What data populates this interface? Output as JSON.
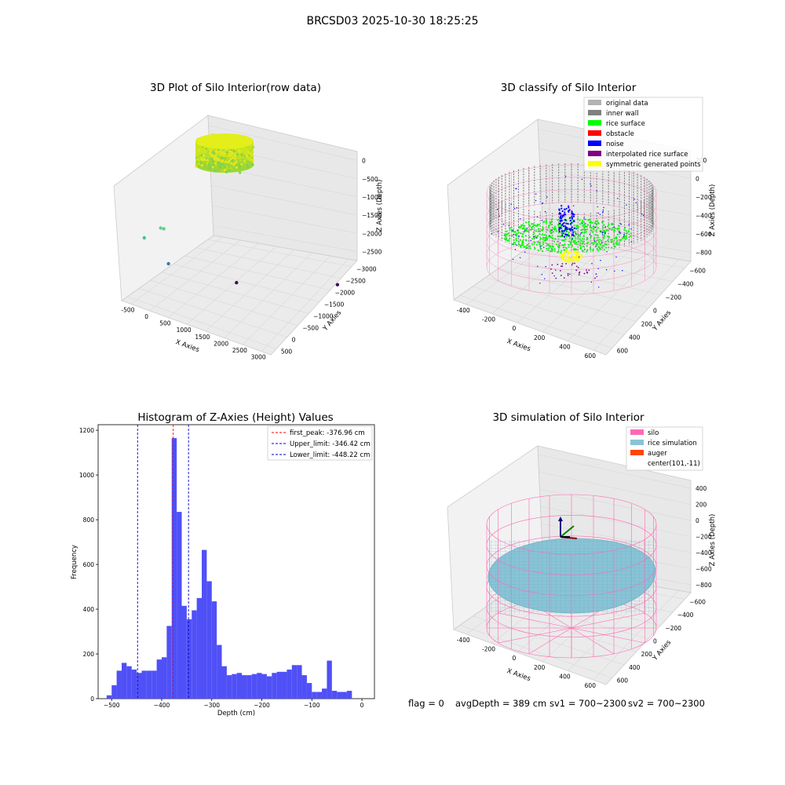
{
  "suptitle": "BRCSD03 2025-10-30 18:25:25",
  "colors": {
    "hist_bar": "#5050f7",
    "peak_line": "#ff0000",
    "limit_line": "#0000cc",
    "silo_wire": "#ff69b4",
    "rice_sim": "#89c3d6",
    "auger": "#ff4500",
    "inner_wall": "#808080",
    "rice_surface": "#00ff00",
    "noise": "#0000ff"
  },
  "footer": {
    "flag": "flag = 0",
    "avg": "avgDepth = 389 cm",
    "sv1": "sv1 = 700~2300",
    "sv2": "sv2 = 700~2300"
  },
  "chart_data": [
    {
      "type": "scatter",
      "title": "3D Plot of Silo Interior(row data)",
      "xlabel": "X Axies",
      "ylabel": "Y Axies",
      "zlabel": "Z Axies (Depth)",
      "xticks": [
        "-500",
        "0",
        "500",
        "1000",
        "1500",
        "2000",
        "2500",
        "3000"
      ],
      "yticks": [
        "500",
        "0",
        "−500",
        "−1000",
        "−1500",
        "−2000",
        "−2500",
        "−3000"
      ],
      "zticks": [
        "0",
        "−500",
        "−1000",
        "−1500",
        "−2000",
        "−2500"
      ],
      "outliers": [
        {
          "x": 250,
          "y": 450,
          "z": -700,
          "color": "#5fd28a"
        },
        {
          "x": 330,
          "y": 450,
          "z": -690,
          "color": "#5fd28a"
        },
        {
          "x": -200,
          "y": 400,
          "z": -1150,
          "color": "#41c0a0"
        },
        {
          "x": 100,
          "y": -100,
          "z": -1950,
          "color": "#3a7bb0"
        },
        {
          "x": 1200,
          "y": -1100,
          "z": -2500,
          "color": "#3b0f5e"
        },
        {
          "x": 2950,
          "y": -2400,
          "z": -2500,
          "color": "#3b0f5e"
        }
      ]
    },
    {
      "type": "scatter",
      "title": "3D classify of Silo Interior",
      "xlabel": "X Axies",
      "ylabel": "Y Axies",
      "zlabel": "Z Axies (Depth)",
      "xticks": [
        "-400",
        "-200",
        "0",
        "200",
        "400",
        "600"
      ],
      "yticks": [
        "600",
        "400",
        "200",
        "0",
        "−200",
        "−400",
        "−600"
      ],
      "zticks": [
        "200",
        "0",
        "−200",
        "−400",
        "−600",
        "−800"
      ],
      "legend": [
        {
          "label": "original data",
          "color": "#b3b3b3"
        },
        {
          "label": "inner wall",
          "color": "#808080"
        },
        {
          "label": "rice surface",
          "color": "#00ff00"
        },
        {
          "label": "obstacle",
          "color": "#ff0000"
        },
        {
          "label": "noise",
          "color": "#0000ff"
        },
        {
          "label": "interpolated rice surface",
          "color": "#800080"
        },
        {
          "label": "symmetric generated points",
          "color": "#ffff00"
        }
      ]
    },
    {
      "type": "bar",
      "title": "Histogram of Z-Axies (Height) Values",
      "xlabel": "Depth (cm)",
      "ylabel": "Frequency",
      "xlim": [
        -527,
        25
      ],
      "ylim": [
        0,
        1225
      ],
      "xticks": [
        -500,
        -400,
        -300,
        -200,
        -100,
        0
      ],
      "xtick_labels": [
        "−500",
        "−400",
        "−300",
        "−200",
        "−100",
        "0"
      ],
      "yticks": [
        0,
        200,
        400,
        600,
        800,
        1000,
        1200
      ],
      "bin_start": -510,
      "bin_width": 10,
      "values": [
        15,
        60,
        125,
        160,
        145,
        130,
        115,
        125,
        125,
        125,
        175,
        185,
        325,
        1165,
        835,
        415,
        355,
        395,
        450,
        665,
        525,
        435,
        240,
        145,
        105,
        110,
        115,
        105,
        105,
        110,
        115,
        110,
        100,
        115,
        120,
        120,
        130,
        150,
        150,
        105,
        70,
        30,
        30,
        45,
        170,
        35,
        30,
        30,
        35
      ],
      "lines": [
        {
          "label": "first_peak: -376.96 cm",
          "x": -376.96,
          "color": "#ff0000"
        },
        {
          "label": "Upper_limit: -346.42 cm",
          "x": -346.42,
          "color": "#0000cc"
        },
        {
          "label": "Lower_limit: -448.22 cm",
          "x": -448.22,
          "color": "#0000cc"
        }
      ]
    },
    {
      "type": "scatter",
      "title": "3D simulation of Silo Interior",
      "xlabel": "X Axies",
      "ylabel": "Y Axies",
      "zlabel": "Z Axies (Depth)",
      "xticks": [
        "-400",
        "-200",
        "0",
        "200",
        "400",
        "600"
      ],
      "yticks": [
        "600",
        "400",
        "200",
        "0",
        "−200",
        "−400",
        "−600"
      ],
      "zticks": [
        "400",
        "200",
        "0",
        "−200",
        "−400",
        "−600",
        "−800"
      ],
      "legend": [
        {
          "label": "silo",
          "color": "#ff69b4"
        },
        {
          "label": "rice simulation",
          "color": "#89c3d6"
        },
        {
          "label": "auger",
          "color": "#ff4500"
        },
        {
          "label": "center(101,-11)",
          "color": ""
        }
      ]
    }
  ]
}
